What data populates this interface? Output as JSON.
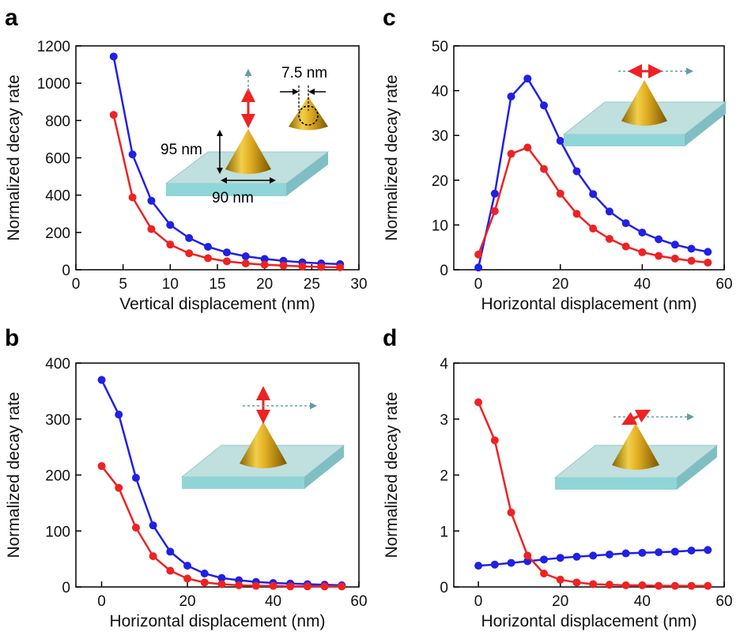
{
  "chart_data": [
    {
      "panel": "a",
      "type": "line",
      "xlabel": "Vertical displacement (nm)",
      "ylabel": "Normalized decay rate",
      "xlim": [
        0,
        30
      ],
      "ylim": [
        0,
        1200
      ],
      "xticks": [
        0,
        5,
        10,
        15,
        20,
        25,
        30
      ],
      "yticks": [
        0,
        200,
        400,
        600,
        800,
        1000,
        1200
      ],
      "x": [
        4,
        6,
        8,
        10,
        12,
        14,
        16,
        18,
        20,
        22,
        24,
        26,
        28
      ],
      "series": [
        {
          "color": "#2020e6",
          "values": [
            1143,
            618,
            370,
            240,
            170,
            123,
            93,
            72,
            58,
            48,
            40,
            34,
            30
          ]
        },
        {
          "color": "#ee2222",
          "values": [
            830,
            388,
            218,
            135,
            88,
            62,
            45,
            34,
            27,
            22,
            18,
            15,
            13
          ]
        }
      ],
      "annotations": [
        "95 nm",
        "90 nm",
        "7.5 nm"
      ],
      "inset": "vertical"
    },
    {
      "panel": "b",
      "type": "line",
      "xlabel": "Horizontal displacement (nm)",
      "ylabel": "Normalized decay rate",
      "xlim": [
        -6,
        60
      ],
      "ylim": [
        0,
        400
      ],
      "xticks": [
        0,
        20,
        40,
        60
      ],
      "yticks": [
        0,
        100,
        200,
        300,
        400
      ],
      "x": [
        0,
        4,
        8,
        12,
        16,
        20,
        24,
        28,
        32,
        36,
        40,
        44,
        48,
        52,
        56
      ],
      "series": [
        {
          "color": "#2020e6",
          "values": [
            370,
            308,
            195,
            110,
            63,
            38,
            24,
            16,
            12,
            9,
            7,
            6,
            5,
            4,
            3
          ]
        },
        {
          "color": "#ee2222",
          "values": [
            216,
            177,
            106,
            55,
            29,
            15,
            8,
            5,
            3,
            2,
            2,
            1,
            1,
            1,
            1
          ]
        }
      ],
      "annotations": [],
      "inset": "vertical-scan"
    },
    {
      "panel": "c",
      "type": "line",
      "xlabel": "Horizontal displacement (nm)",
      "ylabel": "Normalized decay rate",
      "xlim": [
        -6,
        60
      ],
      "ylim": [
        0,
        50
      ],
      "xticks": [
        0,
        20,
        40,
        60
      ],
      "yticks": [
        0,
        10,
        20,
        30,
        40,
        50
      ],
      "x": [
        0,
        4,
        8,
        12,
        16,
        20,
        24,
        28,
        32,
        36,
        40,
        44,
        48,
        52,
        56
      ],
      "series": [
        {
          "color": "#2020e6",
          "values": [
            0.5,
            17,
            38.7,
            42.7,
            36.7,
            28.8,
            22,
            16.9,
            13,
            10.4,
            8.3,
            6.8,
            5.6,
            4.7,
            4
          ]
        },
        {
          "color": "#ee2222",
          "values": [
            3.4,
            13.1,
            25.9,
            27.3,
            22.5,
            17,
            12.5,
            9.2,
            6.9,
            5.2,
            3.9,
            3.1,
            2.5,
            2,
            1.6
          ]
        }
      ],
      "annotations": [],
      "inset": "horizontal"
    },
    {
      "panel": "d",
      "type": "line",
      "xlabel": "Horizontal displacement (nm)",
      "ylabel": "Normalized decay rate",
      "xlim": [
        -6,
        60
      ],
      "ylim": [
        0,
        4
      ],
      "xticks": [
        0,
        20,
        40,
        60
      ],
      "yticks": [
        0,
        1,
        2,
        3,
        4
      ],
      "x": [
        0,
        4,
        8,
        12,
        16,
        20,
        24,
        28,
        32,
        36,
        40,
        44,
        48,
        52,
        56
      ],
      "series": [
        {
          "color": "#2020e6",
          "values": [
            0.38,
            0.4,
            0.43,
            0.46,
            0.49,
            0.52,
            0.54,
            0.56,
            0.58,
            0.6,
            0.61,
            0.62,
            0.63,
            0.65,
            0.66
          ]
        },
        {
          "color": "#ee2222",
          "values": [
            3.3,
            2.62,
            1.33,
            0.56,
            0.24,
            0.13,
            0.08,
            0.05,
            0.04,
            0.03,
            0.03,
            0.02,
            0.02,
            0.02,
            0.02
          ]
        }
      ],
      "annotations": [],
      "inset": "tilted"
    }
  ]
}
